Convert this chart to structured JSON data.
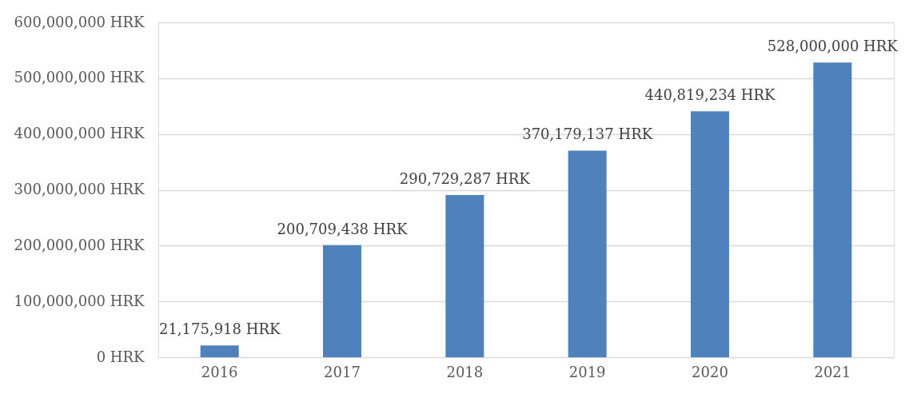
{
  "chart_data": {
    "type": "bar",
    "categories": [
      "2016",
      "2017",
      "2018",
      "2019",
      "2020",
      "2021"
    ],
    "values": [
      21175918,
      200709438,
      290729287,
      370179137,
      440819234,
      528000000
    ],
    "value_labels": [
      "21,175,918 HRK",
      "200,709,438 HRK",
      "290,729,287 HRK",
      "370,179,137 HRK",
      "440,819,234 HRK",
      "528,000,000 HRK"
    ],
    "color": "#4f81bd",
    "ylim": [
      0,
      600000000
    ],
    "yticks": [
      {
        "value": 0,
        "label": "0 HRK"
      },
      {
        "value": 100000000,
        "label": "100,000,000 HRK"
      },
      {
        "value": 200000000,
        "label": "200,000,000 HRK"
      },
      {
        "value": 300000000,
        "label": "300,000,000 HRK"
      },
      {
        "value": 400000000,
        "label": "400,000,000 HRK"
      },
      {
        "value": 500000000,
        "label": "500,000,000 HRK"
      },
      {
        "value": 600000000,
        "label": "600,000,000 HRK"
      }
    ],
    "grid": "y"
  }
}
